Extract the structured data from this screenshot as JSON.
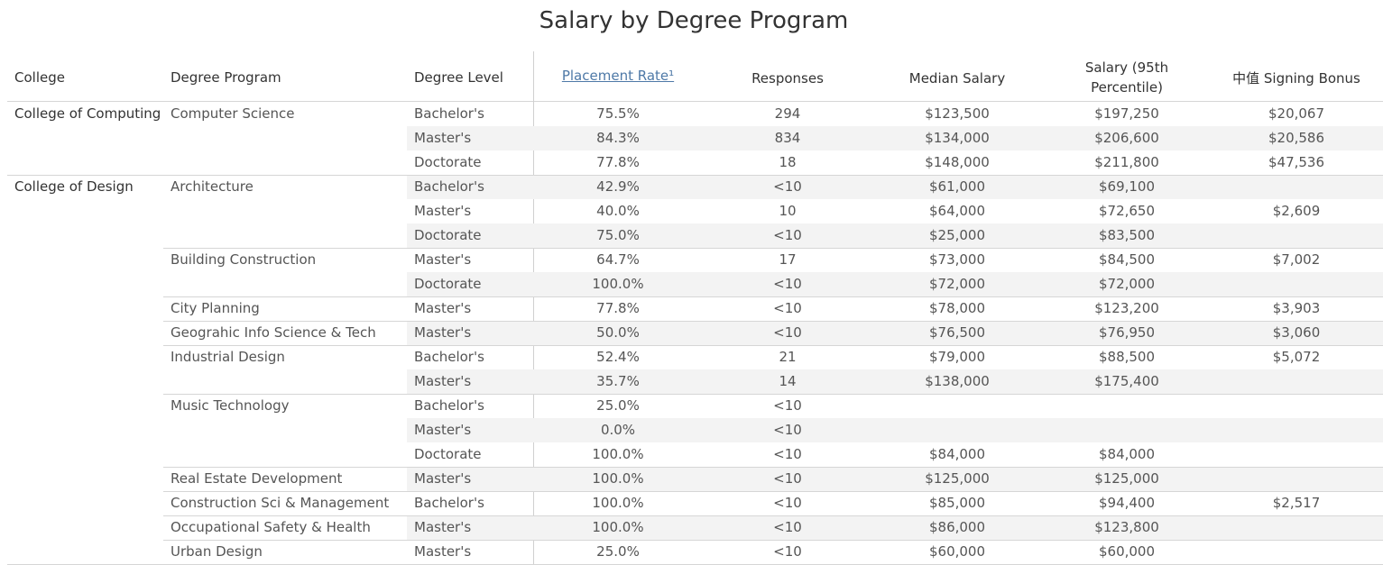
{
  "title": "Salary by Degree Program",
  "headers": {
    "college": "College",
    "program": "Degree Program",
    "level": "Degree Level",
    "placement": "Placement Rate¹",
    "responses": "Responses",
    "median": "Median Salary",
    "salary95_line1": "Salary (95th",
    "salary95_line2": "Percentile)",
    "bonus": "中值 Signing Bonus"
  },
  "colors": {
    "link": "#4e79a7",
    "band": "#f3f3f3",
    "rule": "#d6d6d6"
  },
  "colleges": [
    {
      "name": "College of Computing"
    },
    {
      "name": "College of Design"
    }
  ],
  "programs": [
    {
      "name": "Computer Science"
    },
    {
      "name": "Architecture"
    },
    {
      "name": "Building Construction"
    },
    {
      "name": "City Planning"
    },
    {
      "name": "Geograhic Info Science & Tech"
    },
    {
      "name": "Industrial Design"
    },
    {
      "name": "Music Technology"
    },
    {
      "name": "Real Estate Development"
    },
    {
      "name": "Construction Sci & Management"
    },
    {
      "name": "Occupational Safety & Health"
    },
    {
      "name": "Urban Design"
    }
  ],
  "rows": [
    {
      "level": "Bachelor's",
      "placement": "75.5%",
      "responses": "294",
      "median": "$123,500",
      "p95": "$197,250",
      "bonus": "$20,067"
    },
    {
      "level": "Master's",
      "placement": "84.3%",
      "responses": "834",
      "median": "$134,000",
      "p95": "$206,600",
      "bonus": "$20,586"
    },
    {
      "level": "Doctorate",
      "placement": "77.8%",
      "responses": "18",
      "median": "$148,000",
      "p95": "$211,800",
      "bonus": "$47,536"
    },
    {
      "level": "Bachelor's",
      "placement": "42.9%",
      "responses": "<10",
      "median": "$61,000",
      "p95": "$69,100",
      "bonus": ""
    },
    {
      "level": "Master's",
      "placement": "40.0%",
      "responses": "10",
      "median": "$64,000",
      "p95": "$72,650",
      "bonus": "$2,609"
    },
    {
      "level": "Doctorate",
      "placement": "75.0%",
      "responses": "<10",
      "median": "$25,000",
      "p95": "$83,500",
      "bonus": ""
    },
    {
      "level": "Master's",
      "placement": "64.7%",
      "responses": "17",
      "median": "$73,000",
      "p95": "$84,500",
      "bonus": "$7,002"
    },
    {
      "level": "Doctorate",
      "placement": "100.0%",
      "responses": "<10",
      "median": "$72,000",
      "p95": "$72,000",
      "bonus": ""
    },
    {
      "level": "Master's",
      "placement": "77.8%",
      "responses": "<10",
      "median": "$78,000",
      "p95": "$123,200",
      "bonus": "$3,903"
    },
    {
      "level": "Master's",
      "placement": "50.0%",
      "responses": "<10",
      "median": "$76,500",
      "p95": "$76,950",
      "bonus": "$3,060"
    },
    {
      "level": "Bachelor's",
      "placement": "52.4%",
      "responses": "21",
      "median": "$79,000",
      "p95": "$88,500",
      "bonus": "$5,072"
    },
    {
      "level": "Master's",
      "placement": "35.7%",
      "responses": "14",
      "median": "$138,000",
      "p95": "$175,400",
      "bonus": ""
    },
    {
      "level": "Bachelor's",
      "placement": "25.0%",
      "responses": "<10",
      "median": "",
      "p95": "",
      "bonus": ""
    },
    {
      "level": "Master's",
      "placement": "0.0%",
      "responses": "<10",
      "median": "",
      "p95": "",
      "bonus": ""
    },
    {
      "level": "Doctorate",
      "placement": "100.0%",
      "responses": "<10",
      "median": "$84,000",
      "p95": "$84,000",
      "bonus": ""
    },
    {
      "level": "Master's",
      "placement": "100.0%",
      "responses": "<10",
      "median": "$125,000",
      "p95": "$125,000",
      "bonus": ""
    },
    {
      "level": "Bachelor's",
      "placement": "100.0%",
      "responses": "<10",
      "median": "$85,000",
      "p95": "$94,400",
      "bonus": "$2,517"
    },
    {
      "level": "Master's",
      "placement": "100.0%",
      "responses": "<10",
      "median": "$86,000",
      "p95": "$123,800",
      "bonus": ""
    },
    {
      "level": "Master's",
      "placement": "25.0%",
      "responses": "<10",
      "median": "$60,000",
      "p95": "$60,000",
      "bonus": ""
    }
  ]
}
